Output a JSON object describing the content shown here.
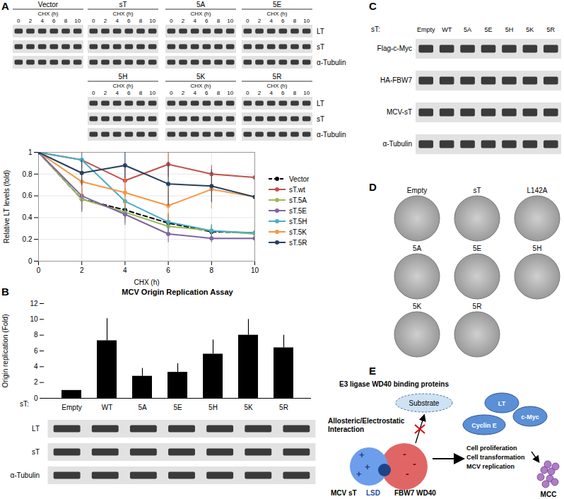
{
  "chart_data": [
    {
      "type": "line",
      "xlabel": "CHX (h)",
      "ylabel": "Relative LT levels (fold)",
      "x": [
        0,
        2,
        4,
        6,
        8,
        10
      ],
      "xlim": [
        0,
        10
      ],
      "xticks": [
        0,
        2,
        4,
        6,
        8,
        10
      ],
      "ylim": [
        0,
        1
      ],
      "yticks": [
        0,
        0.2,
        0.4,
        0.6,
        0.8,
        1
      ],
      "grid": true,
      "legend": "right",
      "marker": "circle",
      "series": [
        {
          "name": "Vector",
          "color": "#000000",
          "line_style": "dashed",
          "values": [
            1,
            0.57,
            0.47,
            0.35,
            0.27,
            0.26
          ],
          "errors": [
            0,
            0.1,
            0.08,
            0.08,
            0.06,
            0.05
          ]
        },
        {
          "name": "sT.wt",
          "color": "#c0504d",
          "line_style": "solid",
          "values": [
            1,
            0.93,
            0.74,
            0.89,
            0.8,
            0.77
          ],
          "errors": [
            0,
            0.08,
            0.15,
            0.12,
            0.08,
            0.1
          ]
        },
        {
          "name": "sT.5A",
          "color": "#9bbb59",
          "line_style": "solid",
          "values": [
            1,
            0.57,
            0.45,
            0.32,
            0.28,
            0.25
          ],
          "errors": [
            0,
            0.12,
            0.1,
            0.08,
            0.06,
            0.05
          ]
        },
        {
          "name": "sT.5E",
          "color": "#8064a2",
          "line_style": "solid",
          "values": [
            1,
            0.6,
            0.43,
            0.25,
            0.21,
            0.21
          ],
          "errors": [
            0,
            0.15,
            0.1,
            0.08,
            0.04,
            0.04
          ]
        },
        {
          "name": "sT.5H",
          "color": "#4bacc6",
          "line_style": "solid",
          "values": [
            1,
            0.93,
            0.55,
            0.36,
            0.28,
            0.26
          ],
          "errors": [
            0,
            0.06,
            0.12,
            0.08,
            0.05,
            0.04
          ]
        },
        {
          "name": "sT.5K",
          "color": "#f79646",
          "line_style": "solid",
          "values": [
            1,
            0.73,
            0.63,
            0.51,
            0.66,
            0.59
          ],
          "errors": [
            0,
            0.15,
            0.15,
            0.15,
            0.18,
            0.18
          ]
        },
        {
          "name": "sT.5R",
          "color": "#254061",
          "line_style": "solid",
          "values": [
            1,
            0.81,
            0.88,
            0.71,
            0.69,
            0.59
          ],
          "errors": [
            0,
            0.12,
            0.12,
            0.2,
            0.15,
            0.15
          ]
        }
      ]
    },
    {
      "type": "bar",
      "title": "MCV Origin Replication Assay",
      "xlabel": "sT:",
      "ylabel": "Origin replication (Fold)",
      "categories": [
        "Empty",
        "WT",
        "5A",
        "5E",
        "5H",
        "5K",
        "5R"
      ],
      "values": [
        1,
        7.3,
        2.8,
        3.3,
        5.6,
        8.0,
        6.4
      ],
      "errors": [
        0,
        2.8,
        1.0,
        1.1,
        1.8,
        2.0,
        1.6
      ],
      "color": "#000000",
      "ylim": [
        0,
        12
      ],
      "yticks": [
        0,
        2,
        4,
        6,
        8,
        10,
        12
      ],
      "grid": false
    }
  ],
  "figure": {
    "panel_labels": [
      "A",
      "B",
      "C",
      "D",
      "E"
    ],
    "A_blots": {
      "time_label": "CHX (h)",
      "times": [
        0,
        2,
        4,
        6,
        8,
        10
      ],
      "rows": [
        "LT",
        "sT",
        "α-Tubulin"
      ],
      "groups": [
        [
          "Vector",
          "sT",
          "5A",
          "5E"
        ],
        [
          "5H",
          "5K",
          "5R"
        ]
      ]
    },
    "B_blots": {
      "rows": [
        "LT",
        "sT",
        "α-Tubulin"
      ]
    },
    "C_blots": {
      "lane_header": "sT:",
      "lanes": [
        "Empty",
        "WT",
        "5A",
        "5E",
        "5H",
        "5K",
        "5R"
      ],
      "rows": [
        "Flag-c-Myc",
        "HA-FBW7",
        "MCV-sT",
        "α-Tubulin"
      ]
    },
    "D_plates": [
      [
        "Empty",
        "sT",
        "L142A"
      ],
      [
        "5A",
        "5E",
        "5H"
      ],
      [
        "5K",
        "5R"
      ]
    ],
    "E_diagram": {
      "title": "E3 ligase WD40 binding proteins",
      "substrate": "Substrate",
      "interaction": [
        "Allosteric/Electrostatic",
        "Interaction"
      ],
      "plus": "+",
      "minus": "-",
      "left_protein": "MCV sT",
      "site": "LSD",
      "right_protein": "FBW7 WD40",
      "complex": [
        "LT",
        "Cyclin E",
        "c-Myc"
      ],
      "outcomes": [
        "Cell proliferation",
        "Cell transformation",
        "MCV replication"
      ],
      "disease": "MCC"
    }
  }
}
